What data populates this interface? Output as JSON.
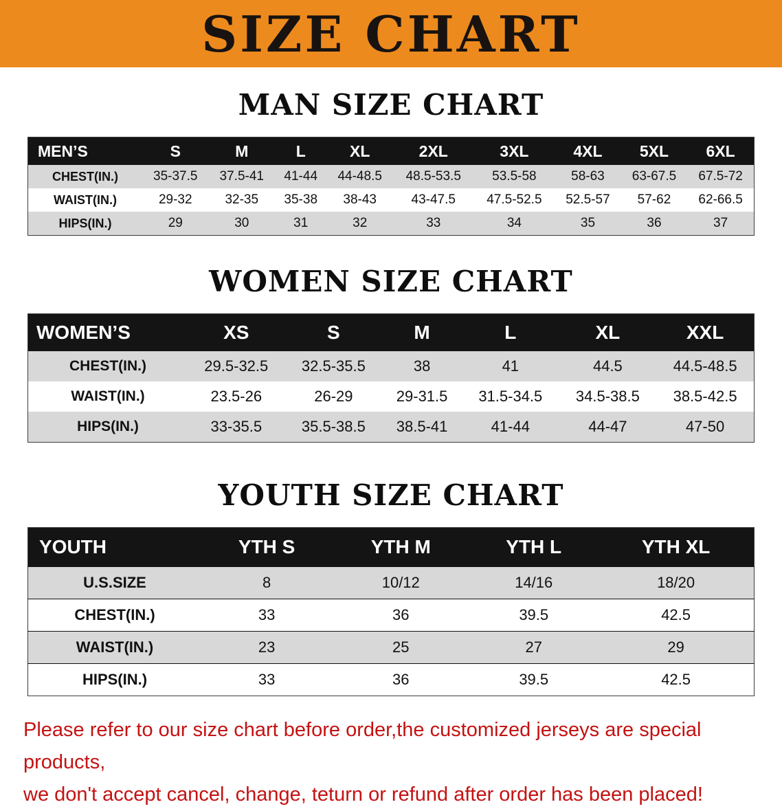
{
  "banner": {
    "title": "SIZE CHART"
  },
  "colors": {
    "banner_bg": "#ed8a1e",
    "table_header_bg": "#141414",
    "shade_row_bg": "#d8d8d8",
    "notice_text": "#c41212"
  },
  "sections": {
    "men": {
      "heading": "MAN SIZE CHART",
      "table": {
        "header_label": "MEN’S",
        "columns": [
          "S",
          "M",
          "L",
          "XL",
          "2XL",
          "3XL",
          "4XL",
          "5XL",
          "6XL"
        ],
        "rows": [
          {
            "label": "CHEST(IN.)",
            "values": [
              "35-37.5",
              "37.5-41",
              "41-44",
              "44-48.5",
              "48.5-53.5",
              "53.5-58",
              "58-63",
              "63-67.5",
              "67.5-72"
            ]
          },
          {
            "label": "WAIST(IN.)",
            "values": [
              "29-32",
              "32-35",
              "35-38",
              "38-43",
              "43-47.5",
              "47.5-52.5",
              "52.5-57",
              "57-62",
              "62-66.5"
            ]
          },
          {
            "label": "HIPS(IN.)",
            "values": [
              "29",
              "30",
              "31",
              "32",
              "33",
              "34",
              "35",
              "36",
              "37"
            ]
          }
        ]
      }
    },
    "women": {
      "heading": "WOMEN SIZE CHART",
      "table": {
        "header_label": "WOMEN’S",
        "columns": [
          "XS",
          "S",
          "M",
          "L",
          "XL",
          "XXL"
        ],
        "rows": [
          {
            "label": "CHEST(IN.)",
            "values": [
              "29.5-32.5",
              "32.5-35.5",
              "38",
              "41",
              "44.5",
              "44.5-48.5"
            ]
          },
          {
            "label": "WAIST(IN.)",
            "values": [
              "23.5-26",
              "26-29",
              "29-31.5",
              "31.5-34.5",
              "34.5-38.5",
              "38.5-42.5"
            ]
          },
          {
            "label": "HIPS(IN.)",
            "values": [
              "33-35.5",
              "35.5-38.5",
              "38.5-41",
              "41-44",
              "44-47",
              "47-50"
            ]
          }
        ]
      }
    },
    "youth": {
      "heading": "YOUTH SIZE CHART",
      "table": {
        "header_label": "YOUTH",
        "columns": [
          "YTH S",
          "YTH M",
          "YTH L",
          "YTH XL"
        ],
        "rows": [
          {
            "label": "U.S.SIZE",
            "values": [
              "8",
              "10/12",
              "14/16",
              "18/20"
            ]
          },
          {
            "label": "CHEST(IN.)",
            "values": [
              "33",
              "36",
              "39.5",
              "42.5"
            ]
          },
          {
            "label": "WAIST(IN.)",
            "values": [
              "23",
              "25",
              "27",
              "29"
            ]
          },
          {
            "label": "HIPS(IN.)",
            "values": [
              "33",
              "36",
              "39.5",
              "42.5"
            ]
          }
        ]
      }
    }
  },
  "notice": {
    "line1": "Please refer to our size chart before order,the customized jerseys are special products,",
    "line2": "we don't accept cancel, change, teturn or refund after order has been placed!"
  }
}
